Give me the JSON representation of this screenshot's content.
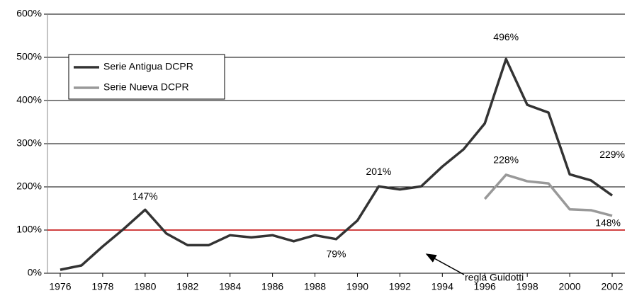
{
  "chart_data": {
    "type": "line",
    "x": [
      1976,
      1977,
      1978,
      1979,
      1980,
      1981,
      1982,
      1983,
      1984,
      1985,
      1986,
      1987,
      1988,
      1989,
      1990,
      1991,
      1992,
      1993,
      1994,
      1995,
      1996,
      1997,
      1998,
      1999,
      2000,
      2001,
      2002
    ],
    "series": [
      {
        "name": "Serie Antigua DCPR",
        "color": "#333333",
        "values": [
          8,
          18,
          62,
          103,
          147,
          92,
          65,
          65,
          88,
          83,
          88,
          74,
          88,
          79,
          122,
          201,
          194,
          201,
          247,
          287,
          347,
          496,
          390,
          372,
          229,
          215,
          180
        ],
        "value_labels": [
          null,
          null,
          null,
          null,
          "147%",
          null,
          null,
          null,
          null,
          null,
          null,
          null,
          null,
          "79%",
          null,
          "201%",
          null,
          null,
          null,
          null,
          null,
          "496%",
          null,
          null,
          "229%",
          null,
          null
        ]
      },
      {
        "name": "Serie Nueva DCPR",
        "color": "#999999",
        "values": [
          null,
          null,
          null,
          null,
          null,
          null,
          null,
          null,
          null,
          null,
          null,
          null,
          null,
          null,
          null,
          null,
          null,
          null,
          null,
          null,
          172,
          228,
          213,
          208,
          148,
          146,
          133
        ],
        "value_labels": [
          null,
          null,
          null,
          null,
          null,
          null,
          null,
          null,
          null,
          null,
          null,
          null,
          null,
          null,
          null,
          null,
          null,
          null,
          null,
          null,
          null,
          "228%",
          null,
          null,
          "148%",
          null,
          null
        ]
      }
    ],
    "xlim": [
      1975.4,
      2002.6
    ],
    "xticks": [
      1976,
      1978,
      1980,
      1982,
      1984,
      1986,
      1988,
      1990,
      1992,
      1994,
      1996,
      1998,
      2000,
      2002
    ],
    "ylim": [
      0,
      600
    ],
    "yticks": [
      {
        "value": 0,
        "label": "0%"
      },
      {
        "value": 100,
        "label": "100%"
      },
      {
        "value": 200,
        "label": "200%"
      },
      {
        "value": 300,
        "label": "300%"
      },
      {
        "value": 400,
        "label": "400%"
      },
      {
        "value": 500,
        "label": "500%"
      },
      {
        "value": 600,
        "label": "600%"
      }
    ],
    "grid": true,
    "legend": "upper left",
    "reference_line": {
      "value": 100,
      "label": "regla Guidotti",
      "color": "#c00000"
    }
  }
}
